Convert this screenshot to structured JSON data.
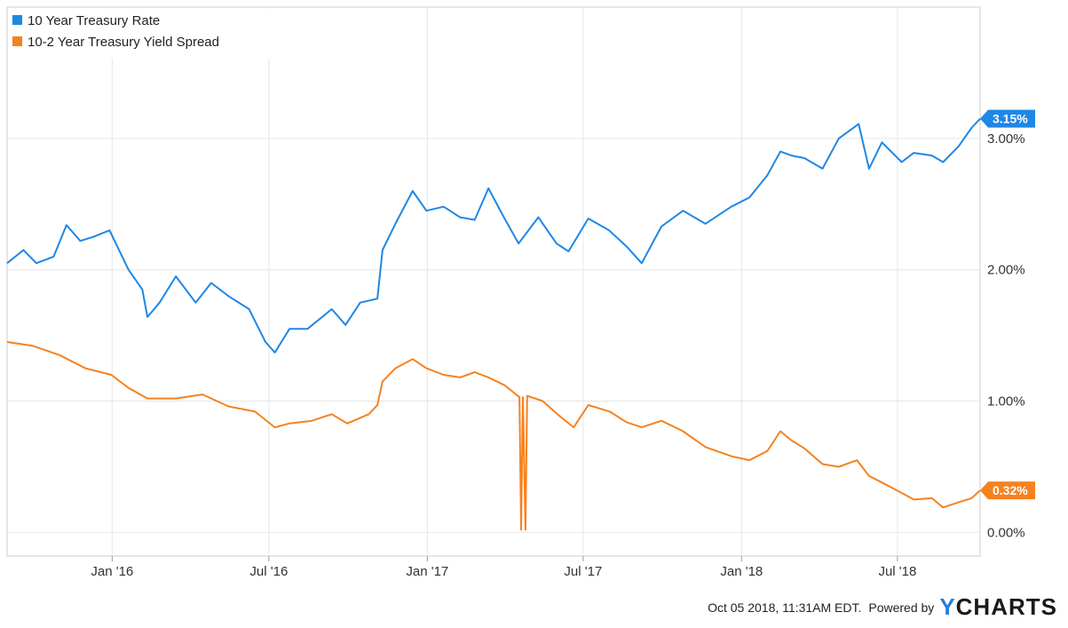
{
  "chart_data": {
    "type": "line",
    "title": "",
    "xlabel": "",
    "ylabel": "",
    "x_range": [
      "2015-09-01",
      "2018-10-05"
    ],
    "ylim": [
      -0.18,
      4.0
    ],
    "y_ticks": [
      0,
      1,
      2,
      3
    ],
    "y_tick_labels": [
      "0.00%",
      "1.00%",
      "2.00%",
      "3.00%"
    ],
    "x_ticks": [
      "2016-01-01",
      "2016-07-01",
      "2017-01-01",
      "2017-07-01",
      "2018-01-01",
      "2018-07-01"
    ],
    "x_tick_labels": [
      "Jan '16",
      "Jul '16",
      "Jan '17",
      "Jul '17",
      "Jan '18",
      "Jul '18"
    ],
    "grid": true,
    "legend_position": "top-left",
    "series": [
      {
        "name": "10 Year Treasury Rate",
        "color": "#1f87e5",
        "last_value_label": "3.15%",
        "points": [
          [
            "2015-09-01",
            2.05
          ],
          [
            "2015-09-20",
            2.15
          ],
          [
            "2015-10-05",
            2.05
          ],
          [
            "2015-10-25",
            2.1
          ],
          [
            "2015-11-09",
            2.34
          ],
          [
            "2015-11-25",
            2.22
          ],
          [
            "2015-12-10",
            2.25
          ],
          [
            "2015-12-29",
            2.3
          ],
          [
            "2016-01-20",
            2.0
          ],
          [
            "2016-02-05",
            1.85
          ],
          [
            "2016-02-11",
            1.64
          ],
          [
            "2016-02-25",
            1.75
          ],
          [
            "2016-03-15",
            1.95
          ],
          [
            "2016-04-07",
            1.75
          ],
          [
            "2016-04-25",
            1.9
          ],
          [
            "2016-05-15",
            1.8
          ],
          [
            "2016-06-08",
            1.7
          ],
          [
            "2016-06-27",
            1.45
          ],
          [
            "2016-07-08",
            1.37
          ],
          [
            "2016-07-25",
            1.55
          ],
          [
            "2016-08-15",
            1.55
          ],
          [
            "2016-09-12",
            1.7
          ],
          [
            "2016-09-28",
            1.58
          ],
          [
            "2016-10-15",
            1.75
          ],
          [
            "2016-11-04",
            1.78
          ],
          [
            "2016-11-10",
            2.15
          ],
          [
            "2016-11-25",
            2.35
          ],
          [
            "2016-12-15",
            2.6
          ],
          [
            "2016-12-31",
            2.45
          ],
          [
            "2017-01-20",
            2.48
          ],
          [
            "2017-02-08",
            2.4
          ],
          [
            "2017-02-25",
            2.38
          ],
          [
            "2017-03-13",
            2.62
          ],
          [
            "2017-03-31",
            2.4
          ],
          [
            "2017-04-17",
            2.2
          ],
          [
            "2017-05-10",
            2.4
          ],
          [
            "2017-05-31",
            2.2
          ],
          [
            "2017-06-14",
            2.14
          ],
          [
            "2017-07-07",
            2.39
          ],
          [
            "2017-07-31",
            2.3
          ],
          [
            "2017-08-20",
            2.18
          ],
          [
            "2017-09-07",
            2.05
          ],
          [
            "2017-09-30",
            2.33
          ],
          [
            "2017-10-25",
            2.45
          ],
          [
            "2017-11-20",
            2.35
          ],
          [
            "2017-12-20",
            2.48
          ],
          [
            "2018-01-10",
            2.55
          ],
          [
            "2018-01-31",
            2.72
          ],
          [
            "2018-02-15",
            2.9
          ],
          [
            "2018-02-28",
            2.87
          ],
          [
            "2018-03-15",
            2.85
          ],
          [
            "2018-04-05",
            2.77
          ],
          [
            "2018-04-24",
            3.0
          ],
          [
            "2018-05-17",
            3.11
          ],
          [
            "2018-05-29",
            2.77
          ],
          [
            "2018-06-13",
            2.97
          ],
          [
            "2018-07-06",
            2.82
          ],
          [
            "2018-07-20",
            2.89
          ],
          [
            "2018-08-10",
            2.87
          ],
          [
            "2018-08-23",
            2.82
          ],
          [
            "2018-09-10",
            2.94
          ],
          [
            "2018-09-25",
            3.08
          ],
          [
            "2018-10-05",
            3.15
          ]
        ]
      },
      {
        "name": "10-2 Year Treasury Yield Spread",
        "color": "#f5821f",
        "last_value_label": "0.32%",
        "points": [
          [
            "2015-09-01",
            1.45
          ],
          [
            "2015-10-01",
            1.42
          ],
          [
            "2015-11-01",
            1.35
          ],
          [
            "2015-12-01",
            1.25
          ],
          [
            "2015-12-31",
            1.2
          ],
          [
            "2016-01-20",
            1.1
          ],
          [
            "2016-02-11",
            1.02
          ],
          [
            "2016-03-15",
            1.02
          ],
          [
            "2016-04-15",
            1.05
          ],
          [
            "2016-05-15",
            0.96
          ],
          [
            "2016-06-15",
            0.92
          ],
          [
            "2016-07-08",
            0.8
          ],
          [
            "2016-07-25",
            0.83
          ],
          [
            "2016-08-20",
            0.85
          ],
          [
            "2016-09-12",
            0.9
          ],
          [
            "2016-09-30",
            0.83
          ],
          [
            "2016-10-25",
            0.9
          ],
          [
            "2016-11-04",
            0.97
          ],
          [
            "2016-11-10",
            1.15
          ],
          [
            "2016-11-25",
            1.25
          ],
          [
            "2016-12-15",
            1.32
          ],
          [
            "2016-12-31",
            1.25
          ],
          [
            "2017-01-20",
            1.2
          ],
          [
            "2017-02-08",
            1.18
          ],
          [
            "2017-02-25",
            1.22
          ],
          [
            "2017-03-13",
            1.18
          ],
          [
            "2017-04-01",
            1.12
          ],
          [
            "2017-04-18",
            1.03
          ],
          [
            "2017-04-20",
            0.02
          ],
          [
            "2017-04-22",
            1.03
          ],
          [
            "2017-04-25",
            0.02
          ],
          [
            "2017-04-27",
            1.04
          ],
          [
            "2017-05-15",
            1.0
          ],
          [
            "2017-06-01",
            0.9
          ],
          [
            "2017-06-20",
            0.8
          ],
          [
            "2017-07-07",
            0.97
          ],
          [
            "2017-08-01",
            0.92
          ],
          [
            "2017-08-20",
            0.84
          ],
          [
            "2017-09-07",
            0.8
          ],
          [
            "2017-09-30",
            0.85
          ],
          [
            "2017-10-25",
            0.77
          ],
          [
            "2017-11-20",
            0.65
          ],
          [
            "2017-12-20",
            0.58
          ],
          [
            "2018-01-10",
            0.55
          ],
          [
            "2018-01-31",
            0.62
          ],
          [
            "2018-02-15",
            0.77
          ],
          [
            "2018-02-28",
            0.7
          ],
          [
            "2018-03-15",
            0.64
          ],
          [
            "2018-04-05",
            0.52
          ],
          [
            "2018-04-24",
            0.5
          ],
          [
            "2018-05-15",
            0.55
          ],
          [
            "2018-05-29",
            0.43
          ],
          [
            "2018-06-13",
            0.38
          ],
          [
            "2018-07-06",
            0.3
          ],
          [
            "2018-07-20",
            0.25
          ],
          [
            "2018-08-10",
            0.26
          ],
          [
            "2018-08-23",
            0.19
          ],
          [
            "2018-09-10",
            0.23
          ],
          [
            "2018-09-25",
            0.26
          ],
          [
            "2018-10-05",
            0.32
          ]
        ]
      }
    ]
  },
  "footer": {
    "timestamp": "Oct 05 2018, 11:31AM EDT.",
    "powered_by": "Powered by",
    "brand_y": "Y",
    "brand_rest": "CHARTS"
  }
}
